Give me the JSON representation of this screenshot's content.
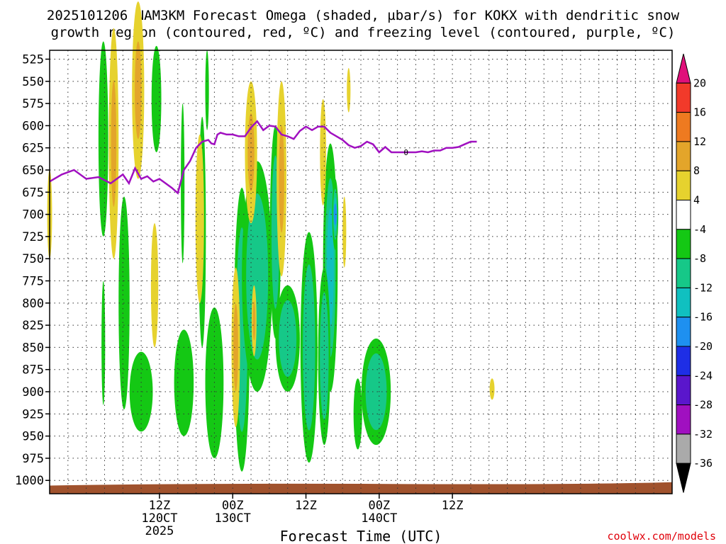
{
  "title_line1": "2025101206 NAM3KM Forecast Omega (shaded, µbar/s) for KOKX with dendritic snow",
  "title_line2": "growth region (contoured, red, ºC) and freezing level (contoured, purple, ºC)",
  "credit": "coolwx.com/models",
  "freezing_level_label": "0",
  "chart_data": {
    "type": "heatmap",
    "title": "2025101206 NAM3KM Forecast Omega (shaded, µbar/s) for KOKX with dendritic snow growth region (contoured, red, ºC) and freezing level (contoured, purple, ºC)",
    "xlabel": "Forecast Time (UTC)",
    "ylabel": "",
    "xlim": [
      -6,
      96
    ],
    "ylim": [
      1015,
      515
    ],
    "y_reversed": true,
    "x_unit": "hours from 2025-10-12 00Z",
    "y_ticks": [
      525,
      550,
      575,
      600,
      625,
      650,
      675,
      700,
      725,
      750,
      775,
      800,
      825,
      850,
      875,
      900,
      925,
      950,
      975,
      1000
    ],
    "x_ticks": [
      {
        "hour": 12,
        "label": "12Z",
        "sub1": "120CT",
        "sub2": "2025"
      },
      {
        "hour": 24,
        "label": "00Z",
        "sub1": "130CT",
        "sub2": ""
      },
      {
        "hour": 36,
        "label": "12Z",
        "sub1": "",
        "sub2": ""
      },
      {
        "hour": 48,
        "label": "00Z",
        "sub1": "140CT",
        "sub2": ""
      },
      {
        "hour": 60,
        "label": "12Z",
        "sub1": "",
        "sub2": ""
      }
    ],
    "grid": true,
    "colorbar": {
      "labels": [
        "20",
        "16",
        "12",
        "8",
        "4",
        "-4",
        "-8",
        "-12",
        "-16",
        "-20",
        "-24",
        "-28",
        "-32",
        "-36"
      ],
      "bins": [
        {
          "from": 20,
          "to": 24,
          "color": "#e0107a"
        },
        {
          "from": 16,
          "to": 20,
          "color": "#f23a2a"
        },
        {
          "from": 12,
          "to": 16,
          "color": "#ee7a20"
        },
        {
          "from": 8,
          "to": 12,
          "color": "#e3a52a"
        },
        {
          "from": 4,
          "to": 8,
          "color": "#e6d22e"
        },
        {
          "from": -4,
          "to": 4,
          "color": "#ffffff"
        },
        {
          "from": -8,
          "to": -4,
          "color": "#14c814"
        },
        {
          "from": -12,
          "to": -8,
          "color": "#16c888"
        },
        {
          "from": -16,
          "to": -12,
          "color": "#10c0c0"
        },
        {
          "from": -20,
          "to": -16,
          "color": "#1e90f0"
        },
        {
          "from": -24,
          "to": -20,
          "color": "#1e2ee6"
        },
        {
          "from": -28,
          "to": -24,
          "color": "#5a16cc"
        },
        {
          "from": -32,
          "to": -28,
          "color": "#a010c0"
        },
        {
          "from": -36,
          "to": -32,
          "color": "#aaaaaa"
        },
        {
          "from": -40,
          "to": -36,
          "color": "#000000"
        }
      ]
    },
    "freezing_level": {
      "label": "0",
      "color": "#a010c0",
      "x": [
        -6,
        -4,
        -2,
        0,
        2,
        4,
        6,
        7,
        8,
        9,
        10,
        11,
        12,
        13,
        14,
        15,
        16,
        17,
        18,
        19,
        20,
        20.5,
        21,
        21.5,
        22,
        23,
        24,
        25,
        26,
        27,
        28,
        29,
        30,
        31,
        32,
        33,
        34,
        35,
        36,
        37,
        38,
        39,
        40,
        41,
        42,
        43,
        44,
        45,
        46,
        47,
        48,
        49,
        50,
        51,
        52,
        53,
        54,
        55,
        56,
        57,
        58,
        59,
        60,
        61,
        62,
        63,
        64,
        65,
        66
      ],
      "y": [
        663,
        655,
        650,
        660,
        658,
        665,
        655,
        665,
        648,
        660,
        657,
        663,
        660,
        665,
        670,
        676,
        650,
        640,
        625,
        618,
        616,
        620,
        621,
        610,
        608,
        610,
        610,
        612,
        612,
        602,
        595,
        605,
        600,
        601,
        610,
        612,
        615,
        606,
        601,
        605,
        601,
        601,
        608,
        612,
        616,
        622,
        625,
        623,
        618,
        621,
        630,
        624,
        630,
        630,
        630,
        630,
        630,
        629,
        630,
        628,
        628,
        625,
        625,
        624,
        621,
        618,
        618
      ]
    },
    "omega_regions": [
      {
        "value": -5,
        "x": 2.8,
        "p": 615,
        "rx": 0.8,
        "rp": 110
      },
      {
        "value": -6,
        "x": 2.8,
        "p": 845,
        "rx": 0.3,
        "rp": 70
      },
      {
        "value": -5,
        "x": 6.2,
        "p": 800,
        "rx": 0.9,
        "rp": 120
      },
      {
        "value": -5,
        "x": 9.0,
        "p": 900,
        "rx": 1.9,
        "rp": 45
      },
      {
        "value": -5,
        "x": 11.5,
        "p": 570,
        "rx": 0.8,
        "rp": 60
      },
      {
        "value": -5,
        "x": 15.8,
        "p": 665,
        "rx": 0.3,
        "rp": 90
      },
      {
        "value": -6,
        "x": 16.0,
        "p": 890,
        "rx": 1.6,
        "rp": 60
      },
      {
        "value": -6,
        "x": 19.0,
        "p": 720,
        "rx": 0.6,
        "rp": 130
      },
      {
        "value": -6,
        "x": 21.0,
        "p": 890,
        "rx": 1.5,
        "rp": 85
      },
      {
        "value": -5,
        "x": 19.8,
        "p": 560,
        "rx": 0.3,
        "rp": 45
      },
      {
        "value": -9,
        "x": 25.5,
        "p": 830,
        "rx": 1.3,
        "rp": 160
      },
      {
        "value": -10,
        "x": 28.0,
        "p": 770,
        "rx": 2.5,
        "rp": 130
      },
      {
        "value": -9,
        "x": 31.0,
        "p": 720,
        "rx": 0.9,
        "rp": 120
      },
      {
        "value": -10,
        "x": 33.0,
        "p": 840,
        "rx": 2.0,
        "rp": 60
      },
      {
        "value": -10,
        "x": 36.5,
        "p": 850,
        "rx": 1.4,
        "rp": 130
      },
      {
        "value": -14,
        "x": 40.0,
        "p": 760,
        "rx": 1.2,
        "rp": 140
      },
      {
        "value": -17,
        "x": 40.8,
        "p": 700,
        "rx": 0.5,
        "rp": 40
      },
      {
        "value": -10,
        "x": 39.0,
        "p": 860,
        "rx": 1.0,
        "rp": 100
      },
      {
        "value": -9,
        "x": 47.5,
        "p": 900,
        "rx": 2.4,
        "rp": 60
      },
      {
        "value": -6,
        "x": 44.5,
        "p": 925,
        "rx": 0.7,
        "rp": 40
      }
    ],
    "positive_regions": [
      {
        "value": 5,
        "x": -6,
        "p": 700,
        "rx": 0.4,
        "rp": 50
      },
      {
        "value": 8,
        "x": 4.5,
        "p": 620,
        "rx": 0.8,
        "rp": 130
      },
      {
        "value": 9,
        "x": 8.5,
        "p": 560,
        "rx": 1.0,
        "rp": 100
      },
      {
        "value": 5,
        "x": 11.2,
        "p": 780,
        "rx": 0.6,
        "rp": 70
      },
      {
        "value": 5,
        "x": 18.6,
        "p": 705,
        "rx": 0.7,
        "rp": 95
      },
      {
        "value": 9,
        "x": 24.5,
        "p": 850,
        "rx": 0.7,
        "rp": 90
      },
      {
        "value": 10,
        "x": 27.0,
        "p": 630,
        "rx": 1.0,
        "rp": 80
      },
      {
        "value": 8,
        "x": 32.0,
        "p": 660,
        "rx": 0.8,
        "rp": 110
      },
      {
        "value": 8,
        "x": 27.5,
        "p": 820,
        "rx": 0.4,
        "rp": 40
      },
      {
        "value": 6,
        "x": 38.8,
        "p": 630,
        "rx": 0.5,
        "rp": 60
      },
      {
        "value": 5,
        "x": 42.3,
        "p": 720,
        "rx": 0.3,
        "rp": 40
      },
      {
        "value": 5,
        "x": 43.0,
        "p": 560,
        "rx": 0.3,
        "rp": 25
      },
      {
        "value": 5,
        "x": 66.5,
        "p": 897,
        "rx": 0.4,
        "rp": 12
      }
    ]
  }
}
